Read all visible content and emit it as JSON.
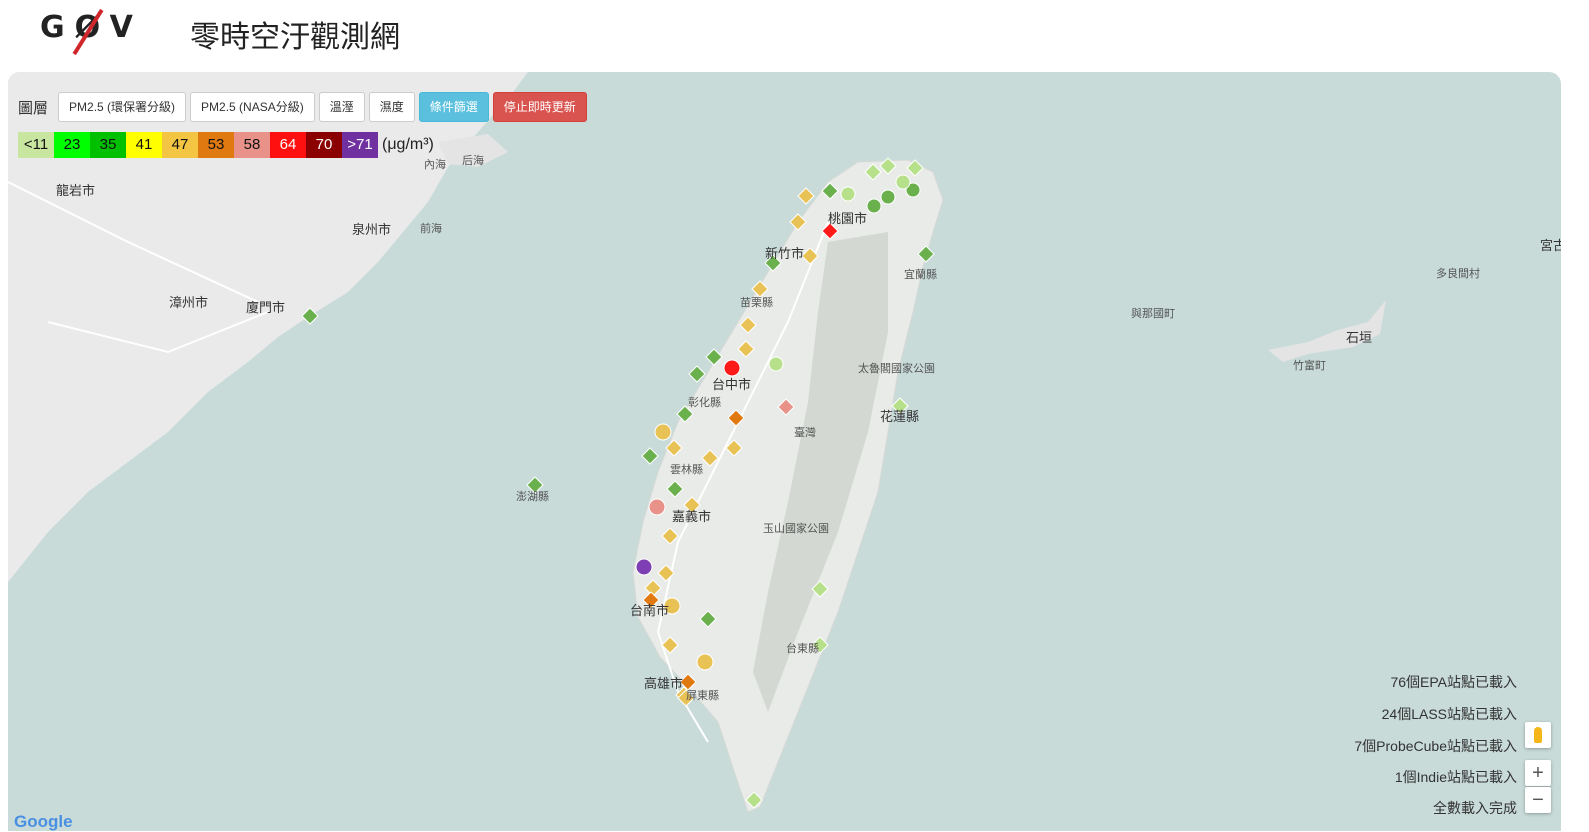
{
  "header": {
    "logo": "GØV",
    "title": "零時空汙觀測網"
  },
  "toolbar": {
    "layer_label": "圖層",
    "buttons": [
      "PM2.5 (環保署分級)",
      "PM2.5 (NASA分級)",
      "溫溼",
      "濕度",
      "條件篩選",
      "停止即時更新"
    ]
  },
  "legend": {
    "cells": [
      {
        "label": "<11",
        "color": "#c8e6a0"
      },
      {
        "label": "23",
        "color": "#00ff00"
      },
      {
        "label": "35",
        "color": "#00c000"
      },
      {
        "label": "41",
        "color": "#ffff00"
      },
      {
        "label": "47",
        "color": "#f4c542"
      },
      {
        "label": "53",
        "color": "#e07a10"
      },
      {
        "label": "58",
        "color": "#e8928a"
      },
      {
        "label": "64",
        "color": "#ff1010"
      },
      {
        "label": "70",
        "color": "#8b0000"
      },
      {
        "label": ">71",
        "color": "#7030a0"
      }
    ],
    "unit": "(μg/m³)"
  },
  "status": [
    "76個EPA站點已載入",
    "24個LASS站點已載入",
    "7個ProbeCube站點已載入",
    "1個Indie站點已載入",
    "全數載入完成"
  ],
  "map": {
    "zoom_in": "+",
    "zoom_out": "−",
    "attribution": "Google",
    "places": [
      {
        "name": "龍岩市",
        "cls": ""
      },
      {
        "name": "泉州市",
        "cls": ""
      },
      {
        "name": "漳州市",
        "cls": ""
      },
      {
        "name": "廈門市",
        "cls": ""
      },
      {
        "name": "桃園市",
        "cls": ""
      },
      {
        "name": "新竹市",
        "cls": ""
      },
      {
        "name": "苗栗縣",
        "cls": "small"
      },
      {
        "name": "台中市",
        "cls": ""
      },
      {
        "name": "彰化縣",
        "cls": "small"
      },
      {
        "name": "雲林縣",
        "cls": "small"
      },
      {
        "name": "嘉義市",
        "cls": ""
      },
      {
        "name": "台南市",
        "cls": ""
      },
      {
        "name": "高雄市",
        "cls": ""
      },
      {
        "name": "屏東縣",
        "cls": "small"
      },
      {
        "name": "台東縣",
        "cls": "small"
      },
      {
        "name": "花蓮縣",
        "cls": ""
      },
      {
        "name": "宜蘭縣",
        "cls": "small"
      },
      {
        "name": "臺灣",
        "cls": "small"
      },
      {
        "name": "太魯閣國家公園",
        "cls": "small"
      },
      {
        "name": "玉山國家公園",
        "cls": "small"
      },
      {
        "name": "澎湖縣",
        "cls": "small"
      },
      {
        "name": "與那國町",
        "cls": "small"
      },
      {
        "name": "竹富町",
        "cls": "small"
      },
      {
        "name": "石垣",
        "cls": ""
      },
      {
        "name": "多良間村",
        "cls": "small"
      },
      {
        "name": "宮古",
        "cls": ""
      },
      {
        "name": "內海",
        "cls": "small"
      },
      {
        "name": "后海",
        "cls": "small"
      },
      {
        "name": "前海",
        "cls": "small"
      }
    ]
  }
}
